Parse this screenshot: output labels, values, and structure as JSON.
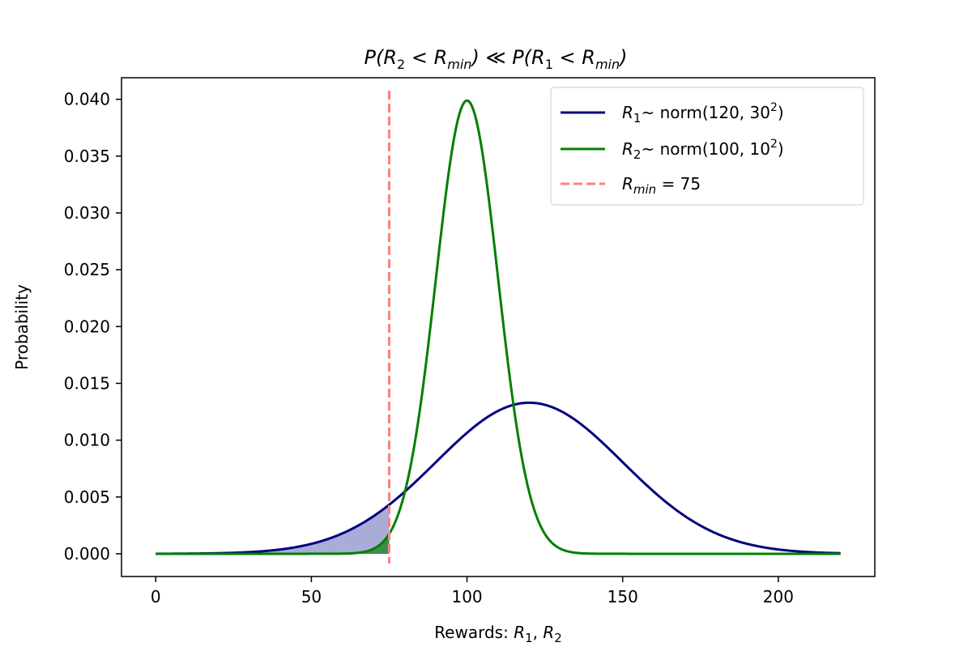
{
  "chart_data": {
    "type": "line",
    "title": {
      "left_var": "R",
      "left_sub": "2",
      "bound_var": "R",
      "bound_sub": "min",
      "relation": "≪",
      "right_var": "R",
      "right_sub": "1"
    },
    "xlabel": {
      "prefix": "Rewards:",
      "var1": "R",
      "sub1": "1",
      "var2": "R",
      "sub2": "2"
    },
    "ylabel": "Probability",
    "xlim": [
      -11,
      231
    ],
    "ylim": [
      -0.002,
      0.0419
    ],
    "x_ticks": [
      0,
      50,
      100,
      150,
      200
    ],
    "y_ticks": [
      0.0,
      0.005,
      0.01,
      0.015,
      0.02,
      0.025,
      0.03,
      0.035,
      0.04
    ],
    "y_tick_labels": [
      "0.000",
      "0.005",
      "0.010",
      "0.015",
      "0.020",
      "0.025",
      "0.030",
      "0.035",
      "0.040"
    ],
    "x_range": [
      0,
      220
    ],
    "threshold": {
      "x": 75,
      "name_var": "R",
      "name_sub": "min",
      "value_text": "= 75",
      "color": "#ff8080",
      "style": "dashed"
    },
    "series": [
      {
        "name_var": "R",
        "name_sub": "1",
        "dist_text": "~  norm(120, 30",
        "exponent": "2",
        "close": ")",
        "mean": 120,
        "std": 30,
        "color": "#00007f",
        "fill_color": "#a9acd6"
      },
      {
        "name_var": "R",
        "name_sub": "2",
        "dist_text": "~  norm(100, 10",
        "exponent": "2",
        "close": ")",
        "mean": 100,
        "std": 10,
        "color": "#007f00",
        "fill_color": "#2e8b3e"
      }
    ],
    "grid": false,
    "legend_position": "top-right"
  }
}
